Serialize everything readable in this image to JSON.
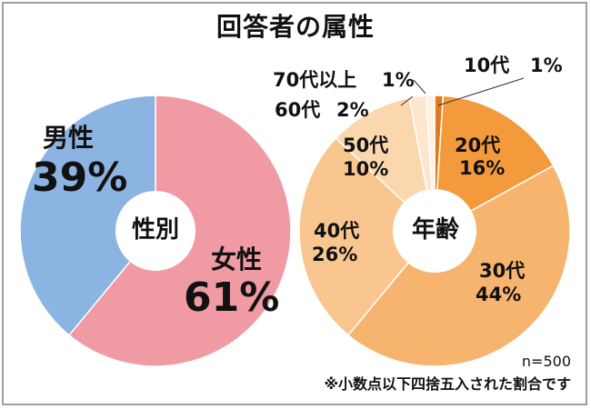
{
  "page": {
    "title": "回答者の属性"
  },
  "chart_data": [
    {
      "type": "pie",
      "title": "性別",
      "categories": [
        "女性",
        "男性"
      ],
      "values": [
        61,
        39
      ],
      "colors": [
        "#f09aa4",
        "#8cb4e2"
      ],
      "labels": [
        {
          "category": "男性",
          "value": "39%"
        },
        {
          "category": "女性",
          "value": "61%"
        }
      ]
    },
    {
      "type": "pie",
      "title": "年齢",
      "categories": [
        "10代",
        "20代",
        "30代",
        "40代",
        "50代",
        "60代",
        "70代以上"
      ],
      "values": [
        1,
        16,
        44,
        26,
        10,
        2,
        1
      ],
      "colors": [
        "#e07a1e",
        "#f39a3c",
        "#f6b46e",
        "#f9c690",
        "#fbd7ae",
        "#fde6cd",
        "#fef1e3"
      ],
      "labels": [
        {
          "category": "10代",
          "value": "1%"
        },
        {
          "category": "20代",
          "value": "16%"
        },
        {
          "category": "30代",
          "value": "44%"
        },
        {
          "category": "40代",
          "value": "26%"
        },
        {
          "category": "50代",
          "value": "10%"
        },
        {
          "category": "60代",
          "value": "2%"
        },
        {
          "category": "70代以上",
          "value": "1%"
        }
      ]
    }
  ],
  "footer": {
    "sample_size": "n=500",
    "note": "※小数点以下四捨五入された割合です"
  }
}
